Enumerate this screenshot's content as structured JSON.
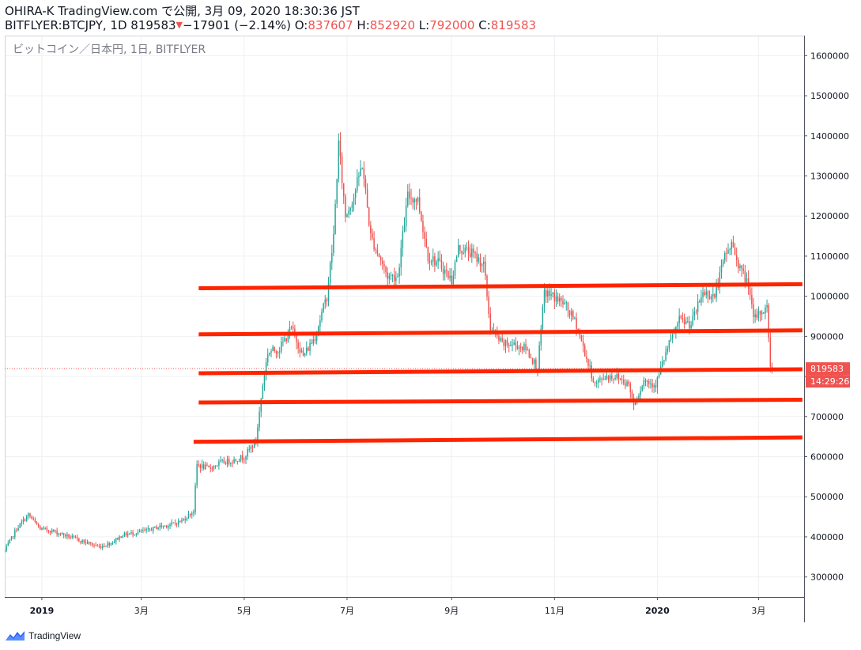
{
  "header": {
    "line1": "OHIRA-K TradingView.com で公開, 3月 09, 2020 18:30:36 JST",
    "symbol": "BITFLYER:BTCJPY, 1D 819583",
    "change_arrow": "▼",
    "change": "−17901 (−2.14%)",
    "o_label": " O:",
    "o_value": "837607",
    "h_label": " H:",
    "h_value": "852920",
    "l_label": " L:",
    "l_value": "792000",
    "c_label": " C:",
    "c_value": "819583"
  },
  "chart_title": "ビットコイン／日本円, 1日, BITFLYER",
  "price_badge": "819583",
  "time_badge": "14:29:26",
  "footer": {
    "brand": "TradingView"
  },
  "colors": {
    "up": "#26a69a",
    "down": "#ef5350",
    "support_line": "#ff2400",
    "grid": "#eef0f3",
    "badge": "#ef5350"
  },
  "chart_data": {
    "type": "candlestick",
    "y_ticks": [
      "1600000",
      "1500000",
      "1400000",
      "1300000",
      "1200000",
      "1100000",
      "1000000",
      "900000",
      "800000",
      "700000",
      "600000",
      "500000",
      "400000",
      "300000"
    ],
    "x_ticks": [
      {
        "label": "2019",
        "date": "2019-01-01",
        "bold": true
      },
      {
        "label": "3月",
        "date": "2019-03-01"
      },
      {
        "label": "5月",
        "date": "2019-05-01"
      },
      {
        "label": "7月",
        "date": "2019-07-01"
      },
      {
        "label": "9月",
        "date": "2019-09-01"
      },
      {
        "label": "11月",
        "date": "2019-11-01"
      },
      {
        "label": "2020",
        "date": "2020-01-01",
        "bold": true
      },
      {
        "label": "3月",
        "date": "2020-03-01"
      }
    ],
    "ylim": [
      250000,
      1650000
    ],
    "xlim": [
      "2018-12-10",
      "2020-03-28"
    ],
    "last_price": 819583,
    "close_path": [
      [
        "2018-12-10",
        365000
      ],
      [
        "2018-12-17",
        420000
      ],
      [
        "2018-12-24",
        455000
      ],
      [
        "2018-12-31",
        420000
      ],
      [
        "2019-01-07",
        415000
      ],
      [
        "2019-01-14",
        405000
      ],
      [
        "2019-01-21",
        395000
      ],
      [
        "2019-01-28",
        385000
      ],
      [
        "2019-02-04",
        375000
      ],
      [
        "2019-02-11",
        385000
      ],
      [
        "2019-02-18",
        405000
      ],
      [
        "2019-02-25",
        410000
      ],
      [
        "2019-03-04",
        415000
      ],
      [
        "2019-03-11",
        425000
      ],
      [
        "2019-03-18",
        430000
      ],
      [
        "2019-03-25",
        440000
      ],
      [
        "2019-04-01",
        465000
      ],
      [
        "2019-04-03",
        580000
      ],
      [
        "2019-04-10",
        570000
      ],
      [
        "2019-04-17",
        585000
      ],
      [
        "2019-04-24",
        590000
      ],
      [
        "2019-05-01",
        600000
      ],
      [
        "2019-05-08",
        640000
      ],
      [
        "2019-05-12",
        780000
      ],
      [
        "2019-05-15",
        860000
      ],
      [
        "2019-05-22",
        870000
      ],
      [
        "2019-05-29",
        920000
      ],
      [
        "2019-06-05",
        850000
      ],
      [
        "2019-06-12",
        900000
      ],
      [
        "2019-06-19",
        1000000
      ],
      [
        "2019-06-23",
        1150000
      ],
      [
        "2019-06-26",
        1380000
      ],
      [
        "2019-06-30",
        1200000
      ],
      [
        "2019-07-05",
        1250000
      ],
      [
        "2019-07-10",
        1330000
      ],
      [
        "2019-07-15",
        1150000
      ],
      [
        "2019-07-20",
        1100000
      ],
      [
        "2019-07-25",
        1050000
      ],
      [
        "2019-07-31",
        1050000
      ],
      [
        "2019-08-06",
        1250000
      ],
      [
        "2019-08-12",
        1240000
      ],
      [
        "2019-08-18",
        1100000
      ],
      [
        "2019-08-25",
        1080000
      ],
      [
        "2019-09-01",
        1040000
      ],
      [
        "2019-09-05",
        1120000
      ],
      [
        "2019-09-12",
        1110000
      ],
      [
        "2019-09-20",
        1080000
      ],
      [
        "2019-09-24",
        920000
      ],
      [
        "2019-10-01",
        880000
      ],
      [
        "2019-10-08",
        880000
      ],
      [
        "2019-10-15",
        870000
      ],
      [
        "2019-10-22",
        820000
      ],
      [
        "2019-10-26",
        1010000
      ],
      [
        "2019-10-31",
        1000000
      ],
      [
        "2019-11-07",
        980000
      ],
      [
        "2019-11-14",
        930000
      ],
      [
        "2019-11-21",
        830000
      ],
      [
        "2019-11-25",
        780000
      ],
      [
        "2019-12-01",
        800000
      ],
      [
        "2019-12-08",
        800000
      ],
      [
        "2019-12-15",
        780000
      ],
      [
        "2019-12-18",
        730000
      ],
      [
        "2019-12-24",
        790000
      ],
      [
        "2019-12-31",
        780000
      ],
      [
        "2020-01-07",
        870000
      ],
      [
        "2020-01-14",
        940000
      ],
      [
        "2020-01-21",
        930000
      ],
      [
        "2020-01-28",
        1010000
      ],
      [
        "2020-02-04",
        1000000
      ],
      [
        "2020-02-10",
        1100000
      ],
      [
        "2020-02-14",
        1130000
      ],
      [
        "2020-02-20",
        1060000
      ],
      [
        "2020-02-24",
        1030000
      ],
      [
        "2020-02-27",
        940000
      ],
      [
        "2020-03-02",
        960000
      ],
      [
        "2020-03-06",
        970000
      ],
      [
        "2020-03-08",
        830000
      ],
      [
        "2020-03-09",
        819583
      ]
    ],
    "horizontal_lines": [
      {
        "from": "2019-04-04",
        "to": "2020-03-27",
        "y_start": 1020000,
        "y_end": 1030000
      },
      {
        "from": "2019-04-04",
        "to": "2020-03-27",
        "y_start": 905000,
        "y_end": 915000
      },
      {
        "from": "2019-04-04",
        "to": "2020-03-27",
        "y_start": 808000,
        "y_end": 818000
      },
      {
        "from": "2019-04-04",
        "to": "2020-03-27",
        "y_start": 735000,
        "y_end": 742000
      },
      {
        "from": "2019-04-01",
        "to": "2020-03-27",
        "y_start": 637000,
        "y_end": 648000
      }
    ]
  }
}
